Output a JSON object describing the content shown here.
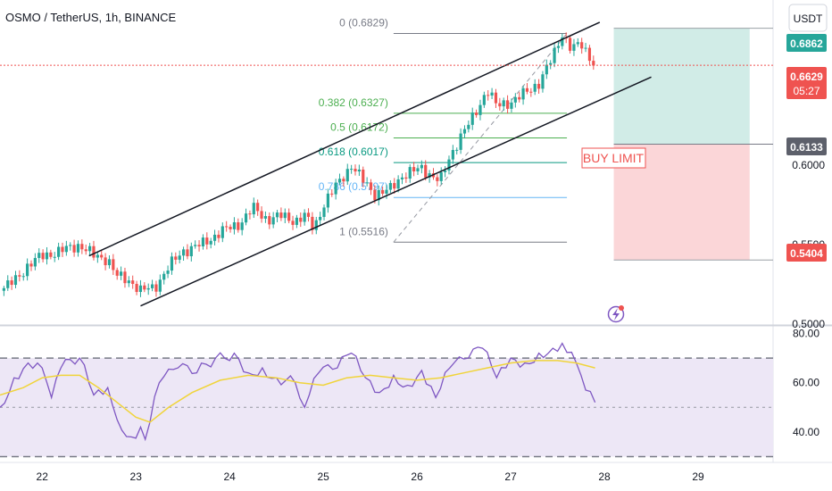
{
  "header": {
    "symbol_title": "OSMO / TetherUS, 1h, BINANCE",
    "currency_button": "USDT"
  },
  "price_labels": {
    "target": "0.6862",
    "current": "0.6629",
    "countdown": "05:27",
    "entry": "0.6133",
    "stop": "0.5404"
  },
  "annotations": {
    "buy_limit": "BUY LIMIT"
  },
  "colors": {
    "up": "#26a69a",
    "down": "#ef5350",
    "channel": "#131722",
    "rsi_line": "#7e57c2",
    "rsi_ma": "#f0d43a",
    "profit_zone": "#d1ece7",
    "loss_zone": "#fbd6d8",
    "rsi_band": "#ede7f6"
  },
  "chart_data": [
    {
      "type": "candlestick",
      "interval": "1h",
      "y_axis": {
        "range": [
          0.4995,
          0.704
        ],
        "ticks": [
          0.5,
          0.55,
          0.6
        ],
        "tick_labels": [
          "0.5000",
          "0.5500",
          "0.6000"
        ]
      },
      "x_axis": {
        "range": [
          21.55,
          29.8
        ],
        "ticks": [
          22,
          23,
          24,
          25,
          26,
          27,
          28,
          29
        ],
        "tick_labels": [
          "22",
          "23",
          "24",
          "25",
          "26",
          "27",
          "28",
          "29"
        ]
      },
      "close_path": [
        [
          21.55,
          0.521
        ],
        [
          21.7,
          0.527
        ],
        [
          21.85,
          0.537
        ],
        [
          22.0,
          0.543
        ],
        [
          22.2,
          0.546
        ],
        [
          22.4,
          0.55
        ],
        [
          22.55,
          0.543
        ],
        [
          22.7,
          0.541
        ],
        [
          22.8,
          0.53
        ],
        [
          22.95,
          0.527
        ],
        [
          23.05,
          0.521
        ],
        [
          23.2,
          0.523
        ],
        [
          23.35,
          0.536
        ],
        [
          23.5,
          0.546
        ],
        [
          23.7,
          0.55
        ],
        [
          23.9,
          0.558
        ],
        [
          24.1,
          0.563
        ],
        [
          24.25,
          0.573
        ],
        [
          24.4,
          0.566
        ],
        [
          24.55,
          0.568
        ],
        [
          24.7,
          0.565
        ],
        [
          24.8,
          0.568
        ],
        [
          24.9,
          0.56
        ],
        [
          25.0,
          0.575
        ],
        [
          25.15,
          0.588
        ],
        [
          25.3,
          0.6
        ],
        [
          25.4,
          0.592
        ],
        [
          25.55,
          0.582
        ],
        [
          25.7,
          0.584
        ],
        [
          25.85,
          0.594
        ],
        [
          26.05,
          0.598
        ],
        [
          26.15,
          0.594
        ],
        [
          26.25,
          0.59
        ],
        [
          26.35,
          0.605
        ],
        [
          26.45,
          0.617
        ],
        [
          26.6,
          0.63
        ],
        [
          26.75,
          0.648
        ],
        [
          26.85,
          0.637
        ],
        [
          27.0,
          0.64
        ],
        [
          27.15,
          0.645
        ],
        [
          27.3,
          0.652
        ],
        [
          27.45,
          0.668
        ],
        [
          27.55,
          0.683
        ],
        [
          27.65,
          0.673
        ],
        [
          27.75,
          0.676
        ],
        [
          27.85,
          0.668
        ],
        [
          27.9,
          0.663
        ]
      ],
      "fibonacci": {
        "levels": [
          {
            "ratio": "0",
            "price": 0.6829,
            "label": "0 (0.6829)"
          },
          {
            "ratio": "0.382",
            "price": 0.6327,
            "label": "0.382 (0.6327)"
          },
          {
            "ratio": "0.5",
            "price": 0.6172,
            "label": "0.5 (0.6172)"
          },
          {
            "ratio": "0.618",
            "price": 0.6017,
            "label": "0.618 (0.6017)"
          },
          {
            "ratio": "0.786",
            "price": 0.5797,
            "label": "0.786 (0.5797)"
          },
          {
            "ratio": "1",
            "price": 0.5516,
            "label": "1 (0.5516)"
          }
        ],
        "x_range": [
          25.75,
          27.6
        ]
      },
      "channel": {
        "upper": [
          [
            22.5,
            0.543
          ],
          [
            27.95,
            0.69
          ]
        ],
        "lower": [
          [
            23.05,
            0.5115
          ],
          [
            28.5,
            0.6555
          ]
        ]
      },
      "position": {
        "entry": 0.6133,
        "target": 0.6862,
        "stop": 0.5404,
        "x_range": [
          28.1,
          29.55
        ]
      },
      "current_price": 0.6629
    },
    {
      "type": "line",
      "name": "RSI",
      "y_axis": {
        "range": [
          28,
          82
        ],
        "ticks": [
          40,
          60,
          80
        ],
        "tick_labels": [
          "40.00",
          "60.00",
          "80.00"
        ],
        "bands": [
          30,
          50,
          70
        ]
      },
      "series": [
        {
          "name": "",
          "points": [
            [
              21.55,
              50
            ],
            [
              21.7,
              62
            ],
            [
              21.85,
              68
            ],
            [
              22.0,
              66
            ],
            [
              22.1,
              54
            ],
            [
              22.2,
              66
            ],
            [
              22.4,
              70
            ],
            [
              22.55,
              55
            ],
            [
              22.7,
              58
            ],
            [
              22.8,
              45
            ],
            [
              22.95,
              38
            ],
            [
              23.05,
              42
            ],
            [
              23.1,
              37
            ],
            [
              23.25,
              60
            ],
            [
              23.45,
              66
            ],
            [
              23.65,
              64
            ],
            [
              23.85,
              70
            ],
            [
              24.05,
              72
            ],
            [
              24.2,
              64
            ],
            [
              24.35,
              66
            ],
            [
              24.5,
              62
            ],
            [
              24.7,
              60
            ],
            [
              24.8,
              50
            ],
            [
              24.95,
              64
            ],
            [
              25.15,
              66
            ],
            [
              25.3,
              72
            ],
            [
              25.45,
              62
            ],
            [
              25.6,
              56
            ],
            [
              25.75,
              63
            ],
            [
              25.9,
              59
            ],
            [
              26.05,
              65
            ],
            [
              26.2,
              54
            ],
            [
              26.35,
              66
            ],
            [
              26.55,
              70
            ],
            [
              26.7,
              74
            ],
            [
              26.85,
              62
            ],
            [
              27.0,
              70
            ],
            [
              27.15,
              68
            ],
            [
              27.3,
              72
            ],
            [
              27.45,
              74
            ],
            [
              27.55,
              76
            ],
            [
              27.7,
              68
            ],
            [
              27.8,
              57
            ],
            [
              27.9,
              52
            ]
          ]
        },
        {
          "name": "",
          "points": [
            [
              21.55,
              55
            ],
            [
              21.8,
              58
            ],
            [
              22.0,
              62
            ],
            [
              22.2,
              63
            ],
            [
              22.4,
              63
            ],
            [
              22.6,
              58
            ],
            [
              22.8,
              52
            ],
            [
              23.0,
              46
            ],
            [
              23.15,
              44
            ],
            [
              23.35,
              50
            ],
            [
              23.6,
              56
            ],
            [
              23.9,
              61
            ],
            [
              24.2,
              63
            ],
            [
              24.5,
              62
            ],
            [
              24.75,
              60
            ],
            [
              25.0,
              59
            ],
            [
              25.25,
              62
            ],
            [
              25.5,
              63
            ],
            [
              25.75,
              62
            ],
            [
              26.0,
              61
            ],
            [
              26.25,
              62
            ],
            [
              26.5,
              64
            ],
            [
              26.75,
              66
            ],
            [
              27.0,
              68
            ],
            [
              27.25,
              69
            ],
            [
              27.5,
              69
            ],
            [
              27.7,
              68
            ],
            [
              27.9,
              66
            ]
          ]
        }
      ]
    }
  ]
}
